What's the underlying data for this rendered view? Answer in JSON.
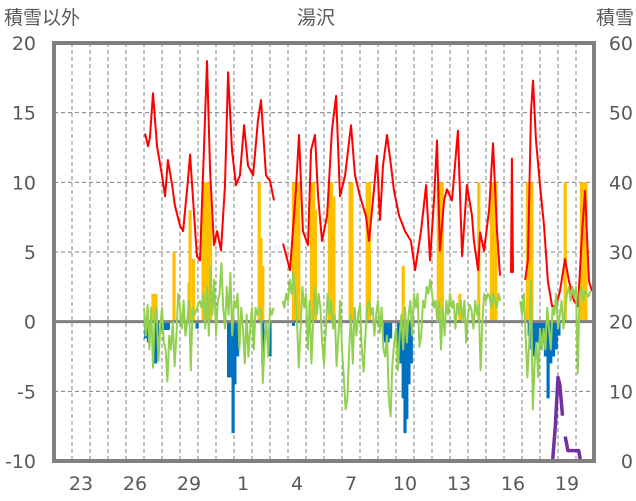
{
  "chart_data": {
    "type": "bar+line",
    "title": "湯沢",
    "ylabel_left": "積雪以外",
    "ylabel_right": "積雪",
    "ylim_left": [
      -10,
      20
    ],
    "ylim_right": [
      0,
      60
    ],
    "yticks_left": [
      "20",
      "15",
      "10",
      "5",
      "0",
      "-5",
      "-10"
    ],
    "yticks_right": [
      "60",
      "50",
      "40",
      "30",
      "20",
      "10",
      "0"
    ],
    "x_unit": "days from 22nd of first month 00:00",
    "xlim": [
      0,
      30
    ],
    "xtick_labels": [
      "23",
      "26",
      "29",
      "1",
      "4",
      "7",
      "10",
      "13",
      "16",
      "19"
    ],
    "grid": true,
    "colors": {
      "red": "#ff0000",
      "green": "#92d050",
      "yellow": "#ffc000",
      "blue": "#0070c0",
      "purple": "#7030a0",
      "frame": "#808080"
    },
    "series": [
      {
        "name": "red-line",
        "axis": "left",
        "type": "line",
        "color": "#ff0000",
        "points": [
          [
            5.06,
            13.5
          ],
          [
            5.22,
            12.6
          ],
          [
            5.33,
            13.2
          ],
          [
            5.5,
            16.4
          ],
          [
            5.72,
            12.6
          ],
          [
            6,
            10.5
          ],
          [
            6.17,
            9
          ],
          [
            6.33,
            11.6
          ],
          [
            6.56,
            9.8
          ],
          [
            6.72,
            8.3
          ],
          [
            7,
            6.9
          ],
          [
            7.17,
            6.5
          ],
          [
            7.44,
            10.1
          ],
          [
            7.56,
            12
          ],
          [
            7.67,
            9.8
          ],
          [
            7.94,
            4.7
          ],
          [
            8.11,
            4.4
          ],
          [
            8.33,
            12.3
          ],
          [
            8.5,
            18.7
          ],
          [
            8.67,
            10.8
          ],
          [
            8.89,
            5.5
          ],
          [
            9.06,
            6.5
          ],
          [
            9.28,
            5.1
          ],
          [
            9.5,
            9.8
          ],
          [
            9.67,
            17.9
          ],
          [
            9.89,
            12.3
          ],
          [
            10.11,
            9.8
          ],
          [
            10.33,
            10.5
          ],
          [
            10.56,
            14.1
          ],
          [
            10.78,
            11.2
          ],
          [
            11.06,
            10.5
          ],
          [
            11.33,
            14.4
          ],
          [
            11.5,
            15.9
          ],
          [
            11.78,
            10.5
          ],
          [
            12,
            10.1
          ],
          [
            12.22,
            8.7
          ],
          null,
          [
            12.72,
            5.6
          ],
          [
            13.11,
            3.7
          ],
          [
            13.44,
            9.4
          ],
          [
            13.61,
            13.4
          ],
          [
            13.83,
            6.5
          ],
          [
            14.11,
            5.5
          ],
          [
            14.28,
            12.3
          ],
          [
            14.5,
            13.4
          ],
          [
            14.67,
            9
          ],
          [
            14.89,
            5.8
          ],
          [
            15.17,
            7.6
          ],
          [
            15.44,
            13.7
          ],
          [
            15.67,
            16.2
          ],
          [
            15.89,
            9
          ],
          [
            16.17,
            10.5
          ],
          [
            16.5,
            14.1
          ],
          [
            16.72,
            10.5
          ],
          [
            17,
            9
          ],
          [
            17.33,
            7.6
          ],
          [
            17.5,
            5.8
          ],
          [
            17.78,
            9.5
          ],
          [
            17.94,
            11.9
          ],
          [
            18.11,
            7.3
          ],
          [
            18.28,
            11.2
          ],
          [
            18.5,
            13.4
          ],
          [
            18.72,
            11.2
          ],
          [
            18.89,
            9.4
          ],
          [
            19.17,
            7.6
          ],
          [
            19.5,
            6.5
          ],
          [
            19.83,
            5.8
          ],
          [
            20.06,
            3.7
          ],
          [
            20.39,
            6.5
          ],
          [
            20.67,
            9.8
          ],
          [
            20.89,
            4.4
          ],
          [
            21.11,
            8.7
          ],
          [
            21.28,
            13
          ],
          [
            21.44,
            5.1
          ],
          [
            21.67,
            8.7
          ],
          [
            21.83,
            9.5
          ],
          [
            22.11,
            8.7
          ],
          [
            22.44,
            13.7
          ],
          [
            22.67,
            4.7
          ],
          [
            22.94,
            9.8
          ],
          [
            23.22,
            7.6
          ],
          [
            23.33,
            5.8
          ],
          [
            23.56,
            3.7
          ],
          [
            23.67,
            6.4
          ],
          [
            23.89,
            5.1
          ],
          [
            24.17,
            8
          ],
          [
            24.39,
            12.8
          ],
          [
            24.61,
            6.5
          ],
          [
            24.78,
            3.3
          ],
          null,
          [
            25.39,
            3.5
          ],
          [
            25.44,
            11.7
          ],
          [
            25.5,
            3.5
          ],
          null,
          [
            26.17,
            3
          ],
          [
            26.33,
            4.4
          ],
          [
            26.5,
            15.1
          ],
          [
            26.61,
            17.3
          ],
          [
            26.78,
            13
          ],
          [
            27,
            9.8
          ],
          [
            27.22,
            6.9
          ],
          [
            27.44,
            2.9
          ],
          [
            27.67,
            1.1
          ],
          [
            27.89,
            1.1
          ],
          [
            28.11,
            2.2
          ],
          [
            28.39,
            4.5
          ],
          [
            28.61,
            2.9
          ],
          [
            28.89,
            1.5
          ],
          [
            29.11,
            1.1
          ],
          [
            29.33,
            6.2
          ],
          [
            29.5,
            9.4
          ],
          [
            29.72,
            2.9
          ],
          [
            29.89,
            2.2
          ]
        ]
      },
      {
        "name": "green-line",
        "axis": "left",
        "type": "line",
        "color": "#92d050",
        "start": 5.0,
        "step": 0.1,
        "values": [
          1,
          -1,
          1.2,
          -2,
          1,
          -3.3,
          0.5,
          1,
          -2.8,
          -0.5,
          1,
          -1.5,
          -2,
          -4.3,
          -1,
          -2,
          0,
          -3.2,
          -1,
          2,
          1,
          -0.5,
          1.5,
          -1,
          0,
          1.5,
          -3.5,
          1,
          0.5,
          0.8,
          1.2,
          1.5,
          1,
          2,
          -0.5,
          2.5,
          -1,
          4,
          0.5,
          3,
          -1,
          1.5,
          2,
          4.2,
          1,
          -0.5,
          2.5,
          0.5,
          3.5,
          -1,
          1.5,
          1,
          2,
          -2,
          1,
          -0.5,
          -3,
          0.5,
          -2.5,
          -0.5,
          1,
          -2,
          1,
          0.5,
          1,
          0.8,
          -4.4,
          -1.5,
          0,
          -2.5,
          1,
          0.5,
          1,
          null,
          null,
          null,
          null,
          1.5,
          1,
          2,
          1.5,
          3,
          2,
          3.5,
          2,
          0,
          -3.3,
          -0.5,
          2.5,
          1,
          2,
          -2,
          1.5,
          -3,
          0,
          2.5,
          0.5,
          2,
          1,
          -1.5,
          -3.1,
          -0.5,
          2,
          0.5,
          1.5,
          -0.5,
          0.5,
          -3.2,
          -1,
          1.5,
          -2,
          -4,
          -6.3,
          -5.5,
          -2,
          0.5,
          -3,
          1,
          -1,
          0.5,
          1.2,
          -2,
          -3.6,
          -1,
          1,
          1.5,
          0.5,
          1,
          -1,
          0.5,
          1.5,
          -0.8,
          1,
          -2,
          -2.5,
          -1,
          -5.5,
          -6.8,
          -3,
          -1.5,
          -0.5,
          -3.5,
          -1,
          0.5,
          -2,
          1,
          -1.5,
          0.5,
          1.5,
          -1,
          2,
          1,
          2,
          -1.8,
          -1,
          1.5,
          1,
          2.5,
          2,
          3,
          2,
          1,
          1.5,
          0,
          1.5,
          -2,
          1,
          -1,
          1.5,
          0.5,
          2,
          1,
          1.5,
          -0.5,
          1.3,
          0.5,
          1.5,
          0,
          1.5,
          -1.5,
          0.5,
          1.2,
          0.8,
          -0.5,
          1.5,
          0.5,
          1.2,
          -3.5,
          0,
          2,
          1.5,
          2,
          1.8,
          1,
          2,
          1.5,
          1,
          2,
          1.5,
          null,
          null,
          null,
          null,
          null,
          null,
          null,
          null,
          null,
          null,
          1.5,
          0.5,
          2,
          -1,
          -4,
          -1.5,
          3,
          -6.3,
          -3,
          -1.5,
          -4,
          -0.5,
          -2,
          -0.5,
          -2,
          1,
          -0.5,
          -2,
          1,
          0.5,
          2,
          -0.5,
          0.5,
          1.5,
          -0.5,
          1,
          2,
          2.5,
          1.5,
          2.5,
          1.8,
          2.5,
          -3.7,
          2,
          2.5,
          1.5,
          2.2,
          2,
          1.8,
          2.2
        ]
      },
      {
        "name": "yellow-bars",
        "axis": "left",
        "type": "bar",
        "color": "#ffc000",
        "bars": [
          [
            5.5,
            2
          ],
          [
            5.67,
            2
          ],
          [
            6.67,
            5
          ],
          [
            7.5,
            2.8
          ],
          [
            7.56,
            8
          ],
          [
            7.75,
            4.5
          ],
          [
            8.28,
            10
          ],
          [
            8.4,
            10
          ],
          [
            8.5,
            10
          ],
          [
            8.6,
            10
          ],
          [
            8.7,
            9
          ],
          [
            11.4,
            10
          ],
          [
            11.5,
            6
          ],
          [
            11.6,
            4
          ],
          [
            13.3,
            10
          ],
          [
            13.4,
            10
          ],
          [
            13.5,
            10
          ],
          [
            13.6,
            10
          ],
          [
            14.3,
            10
          ],
          [
            14.42,
            10
          ],
          [
            14.52,
            8
          ],
          [
            15.3,
            10
          ],
          [
            15.42,
            10
          ],
          [
            15.55,
            9
          ],
          [
            16.45,
            10
          ],
          [
            16.55,
            10
          ],
          [
            17.4,
            10
          ],
          [
            17.52,
            10
          ],
          [
            19.4,
            4
          ],
          [
            21.35,
            10
          ],
          [
            21.47,
            10
          ],
          [
            21.57,
            10
          ],
          [
            22.55,
            2
          ],
          [
            23.6,
            10
          ],
          [
            24.3,
            10
          ],
          [
            24.42,
            10
          ],
          [
            24.55,
            10
          ],
          [
            26.3,
            10
          ],
          [
            26.42,
            10
          ],
          [
            26.55,
            10
          ],
          [
            28.4,
            10
          ],
          [
            29.3,
            10
          ],
          [
            29.42,
            10
          ],
          [
            29.55,
            10
          ]
        ]
      },
      {
        "name": "blue-bars",
        "axis": "left",
        "type": "bar",
        "color": "#0070c0",
        "bars": [
          [
            5.1,
            -1.2
          ],
          [
            5.25,
            -1.5
          ],
          [
            5.65,
            -3
          ],
          [
            5.75,
            -2.5
          ],
          [
            6.05,
            -0.6
          ],
          [
            6.2,
            -0.6
          ],
          [
            6.35,
            -0.6
          ],
          [
            7.95,
            -0.5
          ],
          [
            9.7,
            -4
          ],
          [
            9.82,
            -4
          ],
          [
            9.95,
            -8
          ],
          [
            10.05,
            -4.5
          ],
          [
            10.2,
            -2.5
          ],
          [
            11.6,
            -3
          ],
          [
            12.0,
            -2.5
          ],
          [
            13.3,
            -0.3
          ],
          [
            18.4,
            -1.5
          ],
          [
            18.55,
            -1.5
          ],
          [
            18.7,
            -1.2
          ],
          [
            19.15,
            -2
          ],
          [
            19.28,
            -3
          ],
          [
            19.4,
            -5.5
          ],
          [
            19.5,
            -8
          ],
          [
            19.6,
            -7
          ],
          [
            19.72,
            -4.5
          ],
          [
            19.85,
            -3
          ],
          [
            26.4,
            -1
          ],
          [
            26.55,
            -2
          ],
          [
            26.7,
            -2.5
          ],
          [
            26.85,
            -1.5
          ],
          [
            27.0,
            -2
          ],
          [
            27.15,
            -1.5
          ],
          [
            27.3,
            -2.5
          ],
          [
            27.45,
            -5.5
          ],
          [
            27.6,
            -3
          ],
          [
            27.75,
            -2.5
          ],
          [
            27.9,
            -2
          ],
          [
            28.05,
            -1
          ]
        ]
      },
      {
        "name": "purple-line",
        "axis": "right",
        "type": "line",
        "color": "#7030a0",
        "points": [
          [
            5.0,
            0
          ],
          [
            12.3,
            0
          ],
          null,
          [
            12.6,
            0
          ],
          [
            24.8,
            0
          ],
          null,
          [
            25.4,
            0
          ],
          [
            27.7,
            0
          ],
          [
            27.85,
            5
          ],
          [
            28.0,
            12
          ],
          [
            28.1,
            11
          ],
          [
            28.25,
            6.5
          ],
          null,
          [
            28.4,
            3.5
          ],
          [
            28.55,
            1.5
          ],
          [
            29.15,
            1.5
          ],
          [
            29.25,
            0
          ],
          [
            30,
            0
          ]
        ]
      }
    ]
  }
}
